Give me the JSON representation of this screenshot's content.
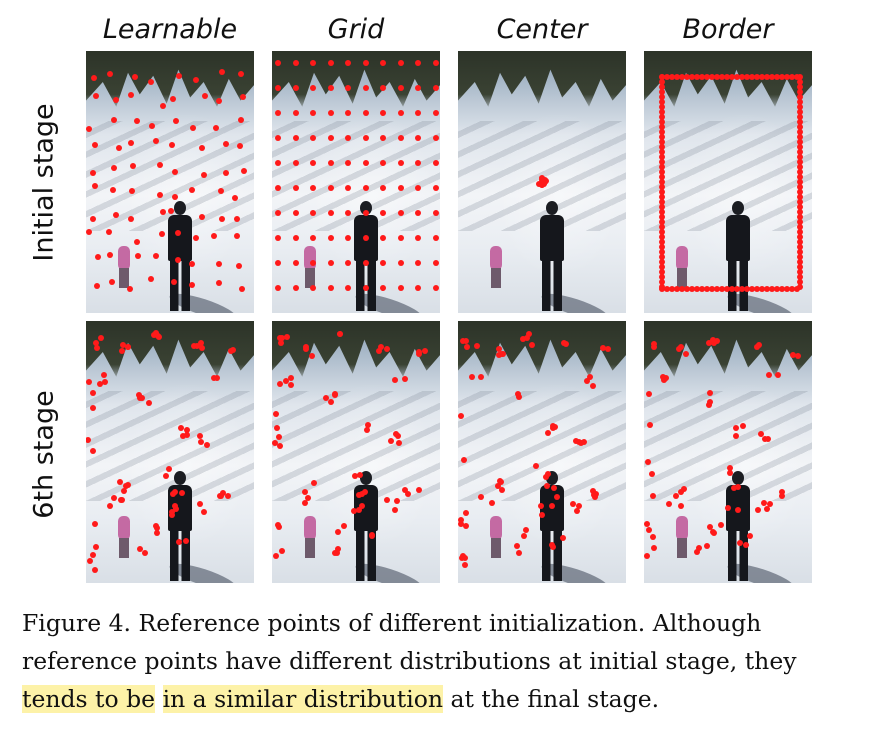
{
  "figure": {
    "columns": [
      "Learnable",
      "Grid",
      "Center",
      "Border"
    ],
    "rows": [
      "Initial stage",
      "6th stage"
    ],
    "point_color": "#ff1a1a",
    "highlight_color": "#fdf2a8"
  },
  "caption": {
    "line1": "Figure 4. Reference points of different initialization.  Although",
    "line2": "reference points have different distributions at initial stage, they",
    "line3_hl1": "tends to be",
    "line3_gap": " ",
    "line3_hl2": "in a similar distribution",
    "line3_rest": " at the final stage."
  }
}
